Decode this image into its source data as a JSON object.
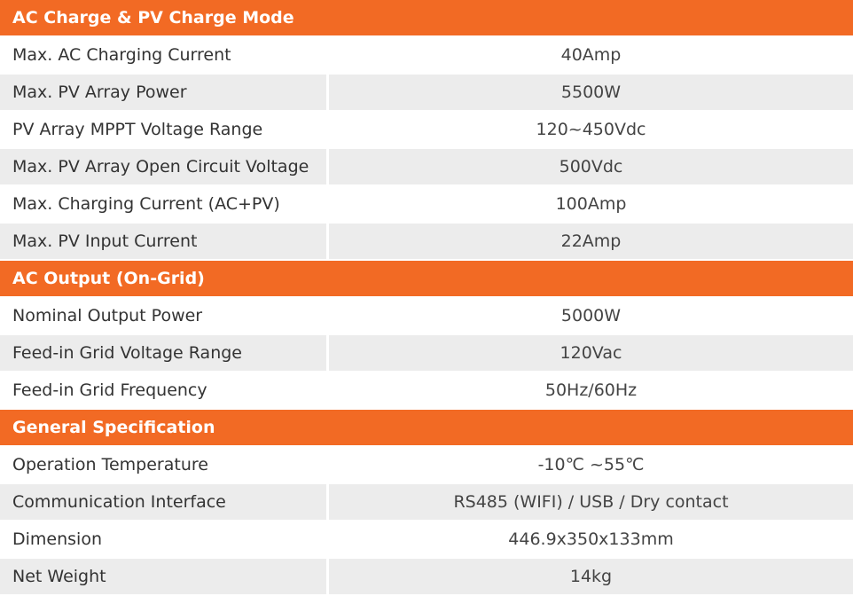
{
  "sections": [
    {
      "title": "AC Charge & PV Charge Mode",
      "rows": [
        [
          "Max. AC Charging Current",
          "40Amp"
        ],
        [
          "Max. PV Array Power",
          "5500W"
        ],
        [
          "PV Array MPPT Voltage Range",
          "120~450Vdc"
        ],
        [
          "Max. PV Array Open Circuit Voltage",
          "500Vdc"
        ],
        [
          "Max. Charging Current (AC+PV)",
          "100Amp"
        ],
        [
          "Max. PV Input Current",
          "22Amp"
        ]
      ]
    },
    {
      "title": "AC Output (On-Grid)",
      "rows": [
        [
          "Nominal Output Power",
          "5000W"
        ],
        [
          "Feed-in Grid Voltage Range",
          "120Vac"
        ],
        [
          "Feed-in Grid Frequency",
          "50Hz/60Hz"
        ]
      ]
    },
    {
      "title": "General Specification",
      "rows": [
        [
          "Operation Temperature",
          "-10℃ ~55℃"
        ],
        [
          "Communication Interface",
          "RS485 (WIFI) / USB / Dry contact"
        ],
        [
          "Dimension",
          "446.9x350x133mm"
        ],
        [
          "Net Weight",
          "14kg"
        ]
      ]
    }
  ]
}
